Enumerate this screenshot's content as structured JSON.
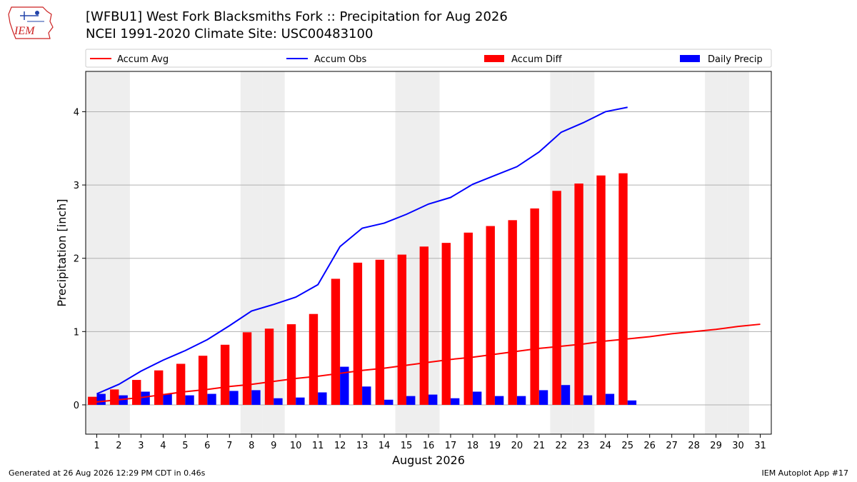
{
  "header": {
    "title": "[WFBU1] West Fork Blacksmiths Fork :: Precipitation for Aug 2026",
    "subtitle": "NCEI 1991-2020 Climate Site: USC00483100",
    "logo_text": "IEM"
  },
  "footer": {
    "generated": "Generated at 26 Aug 2026 12:29 PM CDT in 0.46s",
    "app": "IEM Autoplot App #17"
  },
  "colors": {
    "accum_avg": "#ff0000",
    "accum_obs": "#0000ff",
    "accum_diff": "#ff0000",
    "daily_precip": "#0000ff",
    "weekend_shade": "#eeeeee",
    "grid": "#b0b0b0"
  },
  "chart_data": {
    "type": "bar",
    "xlabel": "August 2026",
    "ylabel": "Precipitation [inch]",
    "xlim": [
      0.5,
      31.5
    ],
    "ylim": [
      -0.4,
      4.55
    ],
    "yticks": [
      0,
      1,
      2,
      3,
      4
    ],
    "grid": "horizontal",
    "legend_position": "top",
    "weekend_days": [
      1,
      2,
      8,
      9,
      15,
      16,
      22,
      23,
      29,
      30
    ],
    "days": [
      1,
      2,
      3,
      4,
      5,
      6,
      7,
      8,
      9,
      10,
      11,
      12,
      13,
      14,
      15,
      16,
      17,
      18,
      19,
      20,
      21,
      22,
      23,
      24,
      25,
      26,
      27,
      28,
      29,
      30,
      31
    ],
    "series": [
      {
        "name": "Accum Avg",
        "kind": "line",
        "values": [
          0.04,
          0.07,
          0.1,
          0.14,
          0.18,
          0.21,
          0.25,
          0.28,
          0.32,
          0.36,
          0.39,
          0.43,
          0.47,
          0.5,
          0.54,
          0.58,
          0.62,
          0.65,
          0.69,
          0.73,
          0.77,
          0.8,
          0.83,
          0.87,
          0.9,
          0.93,
          0.97,
          1.0,
          1.03,
          1.07,
          1.1
        ]
      },
      {
        "name": "Accum Obs",
        "kind": "line",
        "values": [
          0.15,
          0.28,
          0.46,
          0.61,
          0.74,
          0.89,
          1.08,
          1.28,
          1.37,
          1.47,
          1.64,
          2.16,
          2.41,
          2.48,
          2.6,
          2.74,
          2.83,
          3.01,
          3.13,
          3.25,
          3.45,
          3.72,
          3.85,
          4.0,
          4.06
        ]
      },
      {
        "name": "Accum Diff",
        "kind": "bar",
        "values": [
          0.11,
          0.21,
          0.34,
          0.47,
          0.56,
          0.67,
          0.82,
          0.99,
          1.04,
          1.1,
          1.24,
          1.72,
          1.94,
          1.98,
          2.05,
          2.16,
          2.21,
          2.35,
          2.44,
          2.52,
          2.68,
          2.92,
          3.02,
          3.13,
          3.16
        ]
      },
      {
        "name": "Daily Precip",
        "kind": "bar",
        "values": [
          0.15,
          0.13,
          0.18,
          0.15,
          0.13,
          0.15,
          0.19,
          0.2,
          0.09,
          0.1,
          0.17,
          0.52,
          0.25,
          0.07,
          0.12,
          0.14,
          0.09,
          0.18,
          0.12,
          0.12,
          0.2,
          0.27,
          0.13,
          0.15,
          0.06
        ]
      }
    ]
  }
}
